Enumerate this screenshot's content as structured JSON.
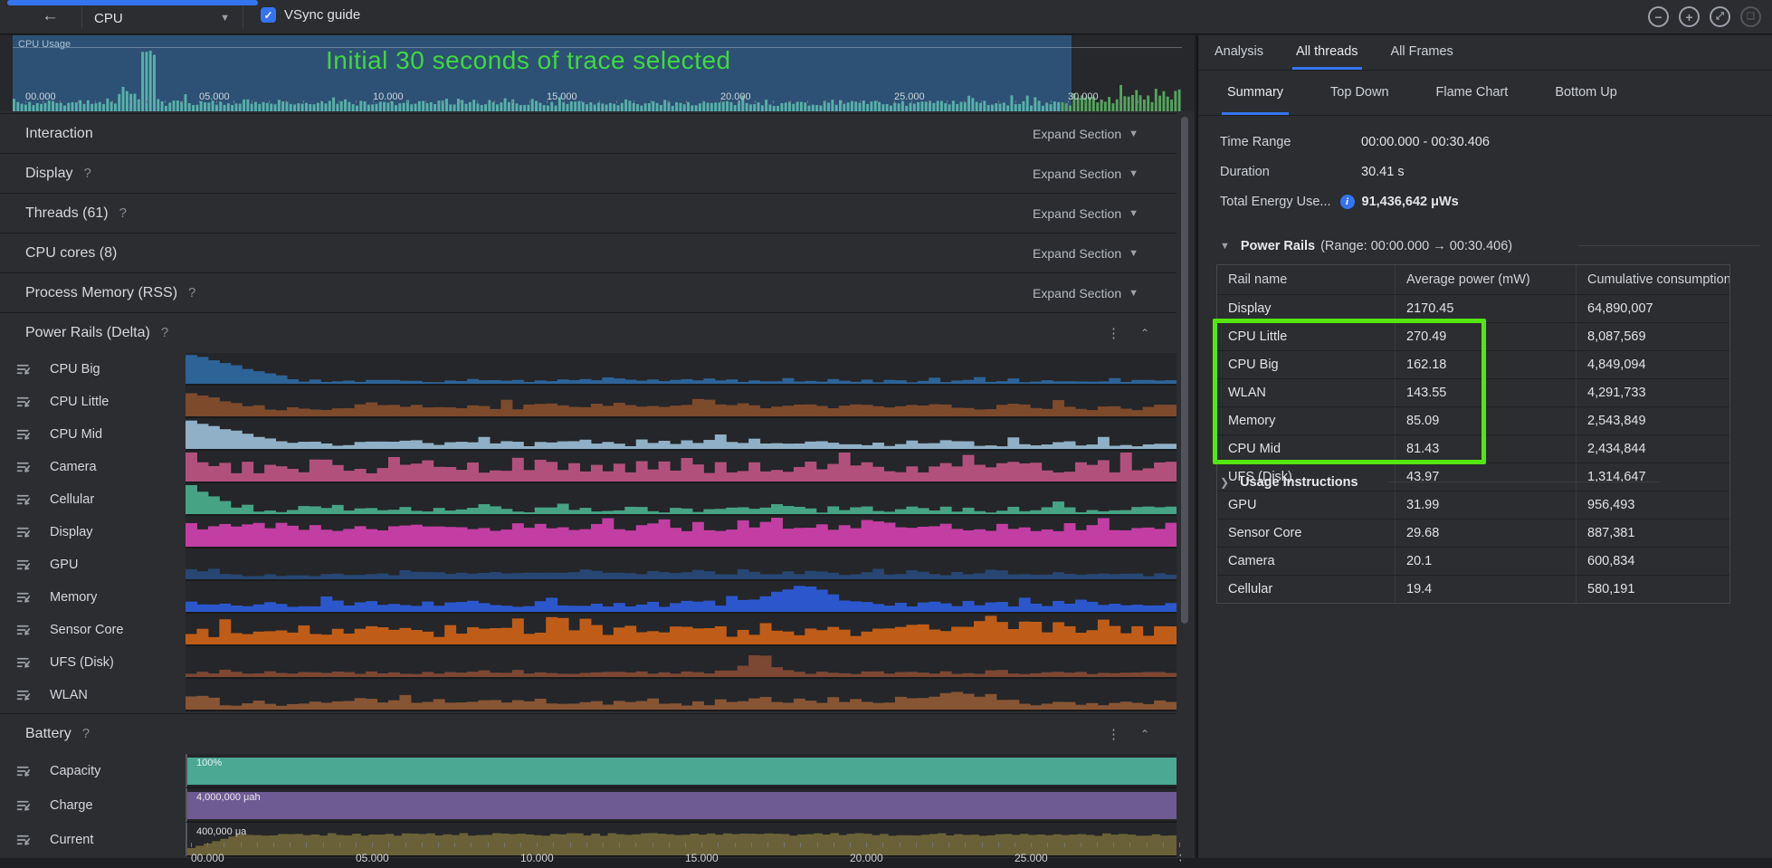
{
  "toolbar": {
    "back_label": "←",
    "profiler_selected": "CPU",
    "vsync_label": "VSync guide",
    "vsync_checked": true,
    "window_buttons": {
      "zoom_out": "−",
      "zoom_in": "+",
      "reset_zoom": "⤢",
      "zoom_to_selection": "❑"
    }
  },
  "timeline": {
    "track_label": "CPU Usage",
    "annotation": "Initial 30 seconds of trace selected",
    "ticks": [
      "00.000",
      "05.000",
      "10.000",
      "15.000",
      "20.000",
      "25.000",
      "30.000"
    ],
    "selection_end_label": "30.000"
  },
  "sections": [
    {
      "label": "Interaction",
      "help": "",
      "action": "Expand Section"
    },
    {
      "label": "Display",
      "help": "?",
      "action": "Expand Section"
    },
    {
      "label": "Threads (61)",
      "help": "?",
      "action": "Expand Section"
    },
    {
      "label": "CPU cores (8)",
      "help": "",
      "action": "Expand Section"
    },
    {
      "label": "Process Memory (RSS)",
      "help": "?",
      "action": "Expand Section"
    }
  ],
  "power_rails_section": {
    "title": "Power Rails (Delta)",
    "help": "?"
  },
  "rails": [
    {
      "name": "CPU Big",
      "color": "#2d6397",
      "profile": {
        "base": 0.1,
        "noise": 0.05,
        "start": [
          0.95,
          0.12
        ],
        "bumps": [
          [
            0.45,
            0.05,
            0.05
          ]
        ],
        "seed": 11
      }
    },
    {
      "name": "CPU Little",
      "color": "#7d4a2c",
      "profile": {
        "base": 0.32,
        "noise": 0.11,
        "start": [
          0.78,
          0.1
        ],
        "bumps": [
          [
            0.55,
            0.07,
            0.2
          ]
        ],
        "seed": 22
      }
    },
    {
      "name": "CPU Mid",
      "color": "#8fb0c6",
      "profile": {
        "base": 0.18,
        "noise": 0.09,
        "start": [
          0.92,
          0.12
        ],
        "bumps": [
          [
            0.55,
            0.12,
            0.05
          ]
        ],
        "seed": 33
      }
    },
    {
      "name": "Camera",
      "color": "#b1517b",
      "profile": {
        "base": 0.52,
        "noise": 0.24,
        "start": [
          0.62,
          0.03
        ],
        "bumps": [],
        "seed": 44
      }
    },
    {
      "name": "Cellular",
      "color": "#46a383",
      "profile": {
        "base": 0.16,
        "noise": 0.11,
        "start": [
          0.95,
          0.06
        ],
        "bumps": [
          [
            0.3,
            0.1,
            0.02
          ]
        ],
        "seed": 55
      }
    },
    {
      "name": "Display",
      "color": "#c23ea2",
      "profile": {
        "base": 0.68,
        "noise": 0.15,
        "start": null,
        "bumps": [],
        "seed": 66
      }
    },
    {
      "name": "GPU",
      "color": "#274672",
      "profile": {
        "base": 0.16,
        "noise": 0.07,
        "start": [
          0.34,
          0.05
        ],
        "bumps": [
          [
            0.5,
            0.08,
            0.3
          ]
        ],
        "seed": 77
      }
    },
    {
      "name": "Memory",
      "color": "#2c57cc",
      "profile": {
        "base": 0.28,
        "noise": 0.11,
        "start": null,
        "bumps": [
          [
            0.62,
            0.55,
            0.045
          ]
        ],
        "seed": 88
      }
    },
    {
      "name": "Sensor Core",
      "color": "#bf5d18",
      "profile": {
        "base": 0.46,
        "noise": 0.21,
        "start": [
          0.25,
          0.04
        ],
        "bumps": [
          [
            0.85,
            0.12,
            0.1
          ]
        ],
        "seed": 99
      }
    },
    {
      "name": "UFS (Disk)",
      "color": "#7c4733",
      "profile": {
        "base": 0.15,
        "noise": 0.05,
        "start": null,
        "bumps": [
          [
            0.58,
            0.62,
            0.018
          ]
        ],
        "seed": 110
      }
    },
    {
      "name": "WLAN",
      "color": "#875534",
      "profile": {
        "base": 0.22,
        "noise": 0.1,
        "start": [
          0.38,
          0.05
        ],
        "bumps": [
          [
            0.78,
            0.32,
            0.05
          ],
          [
            0.3,
            0.08,
            0.1
          ]
        ],
        "seed": 121
      }
    }
  ],
  "battery": {
    "title": "Battery",
    "help": "?",
    "tracks": [
      {
        "name": "Capacity",
        "value_label": "100%",
        "color": "#4aa893",
        "type": "solid"
      },
      {
        "name": "Charge",
        "value_label": "4,000,000 μah",
        "color": "#6f5b93",
        "type": "solid"
      },
      {
        "name": "Current",
        "value_label": "400,000 μa",
        "color": "#6b6138",
        "type": "hist"
      }
    ]
  },
  "bottom_axis": {
    "ticks": [
      "00.000",
      "05.000",
      "10.000",
      "15.000",
      "20.000",
      "25.000",
      "30.000"
    ]
  },
  "right_panel": {
    "tabs": [
      {
        "label": "Analysis",
        "active": false
      },
      {
        "label": "All threads",
        "active": true
      },
      {
        "label": "All Frames",
        "active": false
      }
    ],
    "subtabs": [
      {
        "label": "Summary",
        "active": true
      },
      {
        "label": "Top Down",
        "active": false
      },
      {
        "label": "Flame Chart",
        "active": false
      },
      {
        "label": "Bottom Up",
        "active": false
      }
    ],
    "summary": {
      "time_range_label": "Time Range",
      "time_range_value": "00:00.000 - 00:30.406",
      "duration_label": "Duration",
      "duration_value": "30.41 s",
      "energy_label": "Total Energy Use...",
      "energy_info": "i",
      "energy_value": "91,436,642 μWs"
    },
    "power_rails_table": {
      "section_title": "Power Rails",
      "section_range": "(Range: 00:00.000 → 00:30.406)",
      "columns": [
        "Rail name",
        "Average power (mW)",
        "Cumulative consumption"
      ],
      "rows": [
        {
          "name": "Display",
          "avg": "2170.45",
          "cum": "64,890,007",
          "highlight": false
        },
        {
          "name": "CPU Little",
          "avg": "270.49",
          "cum": "8,087,569",
          "highlight": true
        },
        {
          "name": "CPU Big",
          "avg": "162.18",
          "cum": "4,849,094",
          "highlight": true
        },
        {
          "name": "WLAN",
          "avg": "143.55",
          "cum": "4,291,733",
          "highlight": true
        },
        {
          "name": "Memory",
          "avg": "85.09",
          "cum": "2,543,849",
          "highlight": true
        },
        {
          "name": "CPU Mid",
          "avg": "81.43",
          "cum": "2,434,844",
          "highlight": true
        },
        {
          "name": "UFS (Disk)",
          "avg": "43.97",
          "cum": "1,314,647",
          "highlight": false
        },
        {
          "name": "GPU",
          "avg": "31.99",
          "cum": "956,493",
          "highlight": false
        },
        {
          "name": "Sensor Core",
          "avg": "29.68",
          "cum": "887,381",
          "highlight": false
        },
        {
          "name": "Camera",
          "avg": "20.1",
          "cum": "600,834",
          "highlight": false
        },
        {
          "name": "Cellular",
          "avg": "19.4",
          "cum": "580,191",
          "highlight": false
        }
      ]
    },
    "usage_instructions": "Usage Instructions"
  },
  "colors": {
    "accent_blue": "#3574f0",
    "annotation_green": "#40d83f",
    "highlight_green": "#55e612",
    "selection_fill": "#2d5174",
    "spark_selected": "#58b0a8",
    "spark_unselected": "#55a45e",
    "progress_strip": "#3574f0"
  }
}
